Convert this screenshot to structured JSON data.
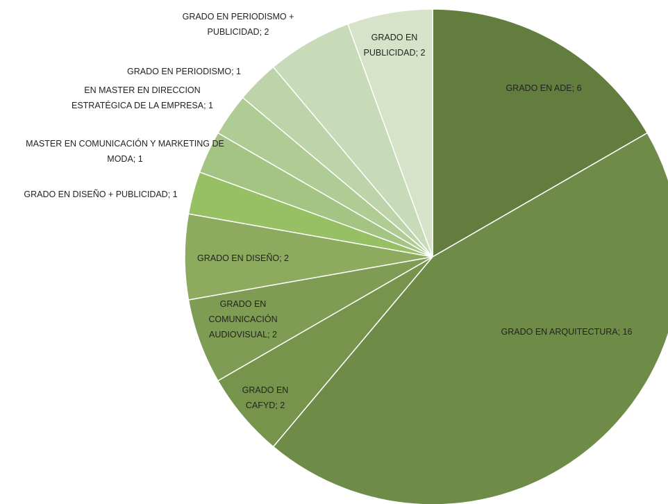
{
  "chart_data": {
    "type": "pie",
    "categories": [
      "GRADO EN ADE",
      "GRADO EN ARQUITECTURA",
      "GRADO EN CAFYD",
      "GRADO EN COMUNICACIÓN AUDIOVISUAL",
      "GRADO EN DISEÑO",
      "GRADO EN DISEÑO + PUBLICIDAD",
      "MASTER EN COMUNICACIÓN Y MARKETING DE MODA",
      "EN MASTER EN DIRECCION ESTRATÉGICA DE LA EMPRESA",
      "GRADO EN PERIODISMO",
      "GRADO EN PERIODISMO + PUBLICIDAD",
      "GRADO EN PUBLICIDAD"
    ],
    "values": [
      6,
      16,
      2,
      2,
      2,
      1,
      1,
      1,
      1,
      2,
      2
    ],
    "colors": [
      "#637d3f",
      "#6e8c47",
      "#77944d",
      "#7f9c55",
      "#8cab5f",
      "#97bf63",
      "#a3c482",
      "#b0cc95",
      "#bdd3a9",
      "#c8dbb9",
      "#d6e3c9"
    ],
    "label_separator": "; "
  }
}
